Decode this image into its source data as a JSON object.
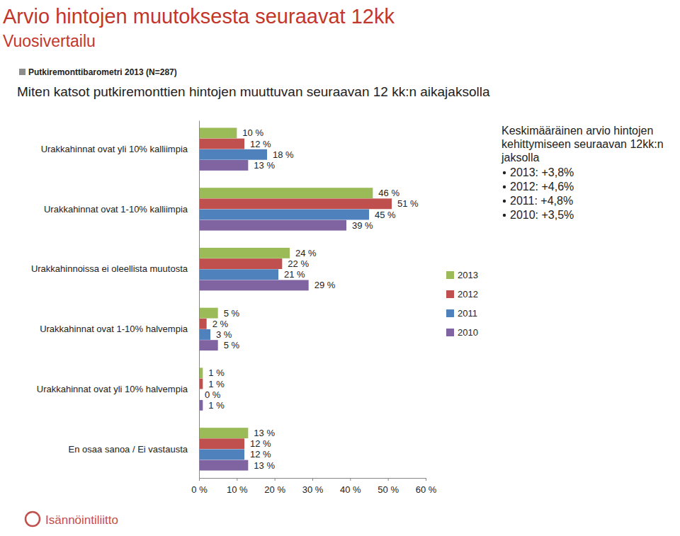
{
  "chart_data": {
    "type": "bar",
    "orientation": "horizontal",
    "title": "Arvio hintojen muutoksesta seuraavat 12kk",
    "subtitle": "Vuosivertailu",
    "note": "Putkiremonttibarometri 2013 (N=287)",
    "caption": "Miten katsot putkiremonttien hintojen muuttuvan seuraavan 12 kk:n aikajaksolla",
    "annotation": {
      "title": "Keskimääräinen arvio hintojen kehittymiseen seuraavan 12kk:n jaksolla",
      "items": [
        "2013: +3,8%",
        "2012: +4,6%",
        "2011: +4,8%",
        "2010: +3,5%"
      ]
    },
    "logo": "Isännöintiliitto",
    "categories": [
      "Urakkahinnat ovat yli 10% kalliimpia",
      "Urakkahinnat ovat 1-10% kalliimpia",
      "Urakkahinnoissa ei oleellista muutosta",
      "Urakkahinnat ovat 1-10% halvempia",
      "Urakkahinnat ovat yli 10% halvempia",
      "En osaa sanoa / Ei vastausta"
    ],
    "series": [
      {
        "name": "2013",
        "color": "#9bbb59",
        "values": [
          10,
          46,
          24,
          5,
          1,
          13
        ],
        "value_labels": [
          "10 %",
          "46 %",
          "24 %",
          "5 %",
          "1 %",
          "13 %"
        ]
      },
      {
        "name": "2012",
        "color": "#c0504d",
        "values": [
          12,
          51,
          22,
          2,
          1,
          12
        ],
        "value_labels": [
          "12 %",
          "51 %",
          "22 %",
          "2 %",
          "1 %",
          "12 %"
        ]
      },
      {
        "name": "2011",
        "color": "#4f81bd",
        "values": [
          18,
          45,
          21,
          3,
          0,
          12
        ],
        "value_labels": [
          "18 %",
          "45 %",
          "21 %",
          "3 %",
          "0 %",
          "12 %"
        ]
      },
      {
        "name": "2010",
        "color": "#8064a2",
        "values": [
          13,
          39,
          29,
          5,
          1,
          13
        ],
        "value_labels": [
          "13 %",
          "39 %",
          "29 %",
          "5 %",
          "1 %",
          "13 %"
        ]
      }
    ],
    "xlim": [
      0,
      60
    ],
    "xticks": [
      {
        "value": 0,
        "label": "0 %"
      },
      {
        "value": 10,
        "label": "10 %"
      },
      {
        "value": 20,
        "label": "20 %"
      },
      {
        "value": 30,
        "label": "30 %"
      },
      {
        "value": 40,
        "label": "40 %"
      },
      {
        "value": 50,
        "label": "50 %"
      },
      {
        "value": 60,
        "label": "60 %"
      }
    ],
    "grid": false,
    "data_labels": true,
    "legend": "right"
  }
}
